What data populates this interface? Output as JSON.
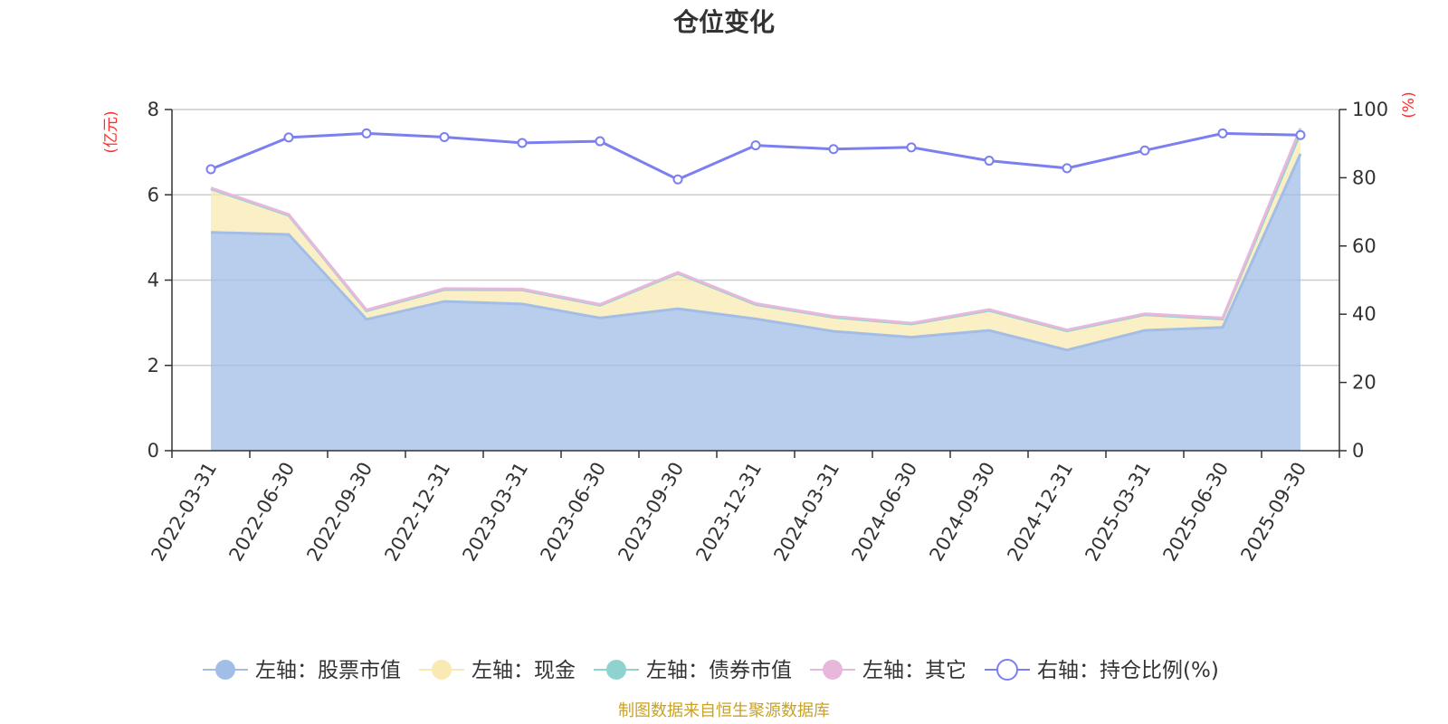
{
  "chart_data": {
    "type": "area",
    "title": "仓位变化",
    "categories": [
      "2022-03-31",
      "2022-06-30",
      "2022-09-30",
      "2022-12-31",
      "2023-03-31",
      "2023-06-30",
      "2023-09-30",
      "2023-12-31",
      "2024-03-31",
      "2024-06-30",
      "2024-09-30",
      "2024-12-31",
      "2025-03-31",
      "2025-06-30",
      "2025-09-30"
    ],
    "left_axis": {
      "unit": "(亿元)",
      "ylim": [
        0,
        8
      ],
      "ticks": [
        0,
        2,
        4,
        6,
        8
      ]
    },
    "right_axis": {
      "unit": "(%)",
      "ylim": [
        0,
        100
      ],
      "ticks": [
        0,
        20,
        40,
        60,
        80,
        100
      ]
    },
    "stacked": true,
    "grid": true,
    "legend_position": "bottom",
    "series": [
      {
        "name": "左轴：股票市值",
        "axis": "left",
        "color": "#a2bee6",
        "values": [
          5.12,
          5.07,
          3.08,
          3.5,
          3.44,
          3.11,
          3.33,
          3.09,
          2.8,
          2.66,
          2.82,
          2.36,
          2.82,
          2.89,
          6.96
        ]
      },
      {
        "name": "左轴：现金",
        "axis": "left",
        "color": "#f9e9b3",
        "values": [
          1.02,
          0.45,
          0.2,
          0.28,
          0.33,
          0.3,
          0.83,
          0.34,
          0.33,
          0.31,
          0.47,
          0.45,
          0.37,
          0.2,
          0.5
        ]
      },
      {
        "name": "左轴：债券市值",
        "axis": "left",
        "color": "#8fd3d0",
        "values": [
          0,
          0,
          0,
          0,
          0,
          0,
          0,
          0,
          0,
          0,
          0,
          0,
          0,
          0,
          0
        ]
      },
      {
        "name": "左轴：其它",
        "axis": "left",
        "color": "#e8b8dc",
        "values": [
          0.02,
          0.02,
          0.02,
          0.02,
          0.02,
          0.02,
          0.02,
          0.02,
          0.02,
          0.02,
          0.02,
          0.02,
          0.02,
          0.02,
          0.1
        ]
      },
      {
        "name": "右轴：持仓比例(%)",
        "axis": "right",
        "color": "#7b7ff0",
        "values": [
          82.5,
          91.8,
          93.0,
          91.9,
          90.2,
          90.7,
          79.5,
          89.5,
          88.4,
          88.9,
          85.0,
          82.8,
          88.0,
          93.0,
          92.5
        ]
      }
    ]
  },
  "source_note": "制图数据来自恒生聚源数据库"
}
